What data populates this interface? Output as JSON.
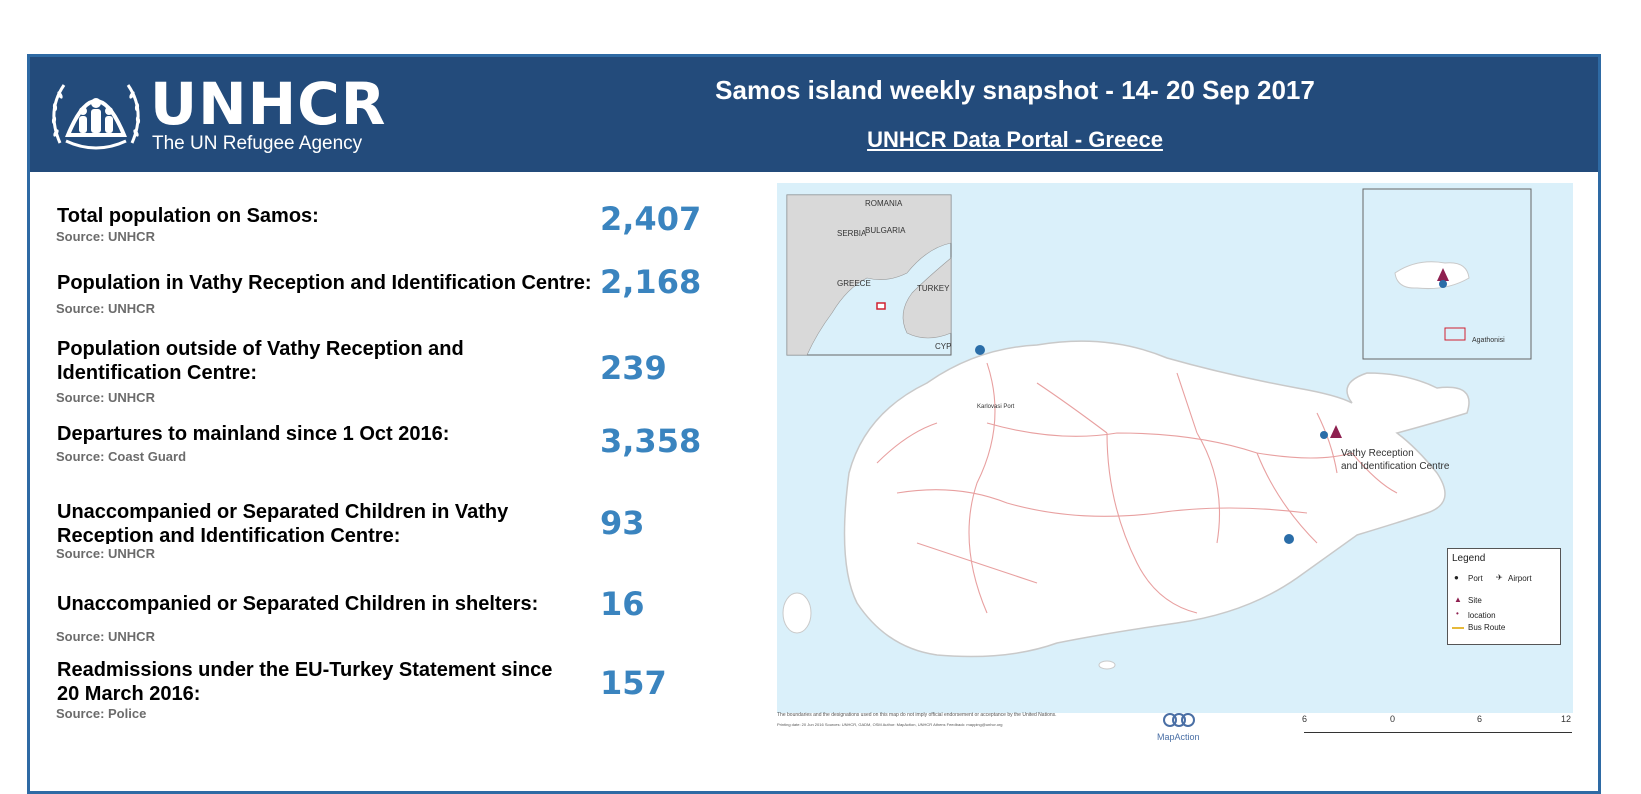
{
  "header": {
    "logo_text": "UNHCR",
    "logo_subtitle": "The UN Refugee Agency",
    "title": "Samos island weekly snapshot - 14- 20 Sep 2017",
    "portal_link": "UNHCR Data Portal - Greece"
  },
  "stats": [
    {
      "label": "Total population on Samos:",
      "source": "Source: UNHCR",
      "value": "2,407"
    },
    {
      "label": "Population in Vathy Reception and Identification Centre:",
      "source": "Source: UNHCR",
      "value": "2,168"
    },
    {
      "label": "Population outside of Vathy Reception and Identification Centre:",
      "source": "Source: UNHCR",
      "value": "239"
    },
    {
      "label": "Departures to mainland since 1 Oct 2016:",
      "source": "Source: Coast Guard",
      "value": "3,358"
    },
    {
      "label": "Unaccompanied or Separated Children in Vathy Reception and Identification Centre:",
      "source": "Source: UNHCR",
      "value": "93"
    },
    {
      "label": "Unaccompanied or Separated Children in shelters:",
      "source": "Source: UNHCR",
      "value": "16"
    },
    {
      "label": "Readmissions under the EU-Turkey Statement since 20 March 2016:",
      "source": "Source: Police",
      "value": "157"
    }
  ],
  "map": {
    "site_label_1": "Vathy Reception",
    "site_label_2": "and Identification Centre",
    "port_label": "Karlovasi Port",
    "inset_label": "Agathonisi",
    "overview_labels": {
      "romania": "ROMANIA",
      "bulgaria": "BULGARIA",
      "turkey": "TURKEY",
      "serbia": "SERBIA",
      "greece": "GREECE",
      "cyprus": "CYP"
    },
    "legend": {
      "title": "Legend",
      "port": "Port",
      "airport": "Airport",
      "site": "Site",
      "location": "location",
      "bus_route": "Bus Route"
    },
    "footnote": "The boundaries and the designations used on this map do not imply official endorsement or acceptance by the United Nations.",
    "footnote_details": "Printing date: 20 Jun 2016    Sources: UNHCR, GADM, OSM    Author: MapAction, UNHCR Athens    Feedback: mapping@unhcr.org",
    "mapaction": "MapAction",
    "scale": [
      "6",
      "0",
      "6",
      "12"
    ]
  },
  "colors": {
    "header_bg": "#234b7b",
    "value_blue": "#3a84bf",
    "frame": "#2e6aa4",
    "sea": "#daf0fa",
    "land": "#ffffff",
    "site": "#8e2050",
    "port": "#2a6da8",
    "road": "#e8a0a0"
  }
}
